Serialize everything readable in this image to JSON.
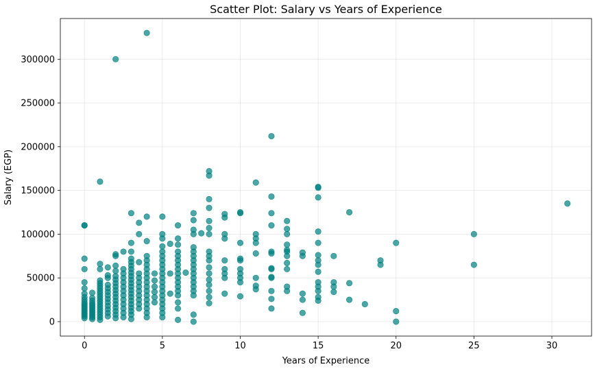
{
  "chart_data": {
    "type": "scatter",
    "title": "Scatter Plot: Salary vs Years of Experience",
    "xlabel": "Years of Experience",
    "ylabel": "Salary (EGP)",
    "xlim": [
      -1.55,
      32.55
    ],
    "ylim": [
      -16500,
      346500
    ],
    "xticks": [
      0,
      5,
      10,
      15,
      20,
      25,
      30
    ],
    "yticks": [
      0,
      50000,
      100000,
      150000,
      200000,
      250000,
      300000
    ],
    "xtick_labels": [
      "0",
      "5",
      "10",
      "15",
      "20",
      "25",
      "30"
    ],
    "ytick_labels": [
      "0",
      "50000",
      "100000",
      "150000",
      "200000",
      "250000",
      "300000"
    ],
    "grid": true,
    "marker_color": "#008080",
    "marker_alpha": 0.7,
    "series": [
      {
        "points": [
          [
            0,
            110000
          ],
          [
            0,
            110000
          ],
          [
            0,
            72000
          ],
          [
            0,
            60000
          ],
          [
            0,
            45000
          ],
          [
            0,
            38000
          ],
          [
            0,
            32000
          ],
          [
            0,
            28000
          ],
          [
            0,
            25000
          ],
          [
            0,
            22000
          ],
          [
            0,
            20000
          ],
          [
            0,
            18000
          ],
          [
            0,
            16000
          ],
          [
            0,
            14000
          ],
          [
            0,
            12000
          ],
          [
            0,
            10000
          ],
          [
            0,
            8000
          ],
          [
            0,
            6000
          ],
          [
            0,
            4000
          ],
          [
            0.5,
            33000
          ],
          [
            0.5,
            27000
          ],
          [
            0.5,
            24000
          ],
          [
            0.5,
            21000
          ],
          [
            0.5,
            19000
          ],
          [
            0.5,
            17000
          ],
          [
            0.5,
            15000
          ],
          [
            0.5,
            13000
          ],
          [
            0.5,
            11000
          ],
          [
            0.5,
            9000
          ],
          [
            0.5,
            7000
          ],
          [
            0.5,
            5000
          ],
          [
            0.5,
            3000
          ],
          [
            1,
            160000
          ],
          [
            1,
            66000
          ],
          [
            1,
            60000
          ],
          [
            1,
            47000
          ],
          [
            1,
            44000
          ],
          [
            1,
            41000
          ],
          [
            1,
            38000
          ],
          [
            1,
            35000
          ],
          [
            1,
            32000
          ],
          [
            1,
            29000
          ],
          [
            1,
            26000
          ],
          [
            1,
            23000
          ],
          [
            1,
            20000
          ],
          [
            1,
            17000
          ],
          [
            1,
            14000
          ],
          [
            1,
            11000
          ],
          [
            1,
            8000
          ],
          [
            1,
            5000
          ],
          [
            1,
            2000
          ],
          [
            1.5,
            62000
          ],
          [
            1.5,
            53000
          ],
          [
            1.5,
            50000
          ],
          [
            1.5,
            42000
          ],
          [
            1.5,
            38000
          ],
          [
            1.5,
            34000
          ],
          [
            1.5,
            30000
          ],
          [
            1.5,
            26000
          ],
          [
            1.5,
            22000
          ],
          [
            1.5,
            18000
          ],
          [
            1.5,
            14000
          ],
          [
            1.5,
            10000
          ],
          [
            1.5,
            6000
          ],
          [
            2,
            300000
          ],
          [
            2,
            77000
          ],
          [
            2,
            75000
          ],
          [
            2,
            64000
          ],
          [
            2,
            58000
          ],
          [
            2,
            52000
          ],
          [
            2,
            48000
          ],
          [
            2,
            44000
          ],
          [
            2,
            40000
          ],
          [
            2,
            36000
          ],
          [
            2,
            32000
          ],
          [
            2,
            28000
          ],
          [
            2,
            24000
          ],
          [
            2,
            20000
          ],
          [
            2,
            16000
          ],
          [
            2,
            12000
          ],
          [
            2,
            8000
          ],
          [
            2,
            4000
          ],
          [
            2.5,
            80000
          ],
          [
            2.5,
            60000
          ],
          [
            2.5,
            55000
          ],
          [
            2.5,
            50000
          ],
          [
            2.5,
            45000
          ],
          [
            2.5,
            40000
          ],
          [
            2.5,
            35000
          ],
          [
            2.5,
            30000
          ],
          [
            2.5,
            25000
          ],
          [
            2.5,
            20000
          ],
          [
            2.5,
            15000
          ],
          [
            2.5,
            10000
          ],
          [
            2.5,
            5000
          ],
          [
            3,
            124000
          ],
          [
            3,
            90000
          ],
          [
            3,
            80000
          ],
          [
            3,
            72000
          ],
          [
            3,
            68000
          ],
          [
            3,
            64000
          ],
          [
            3,
            60000
          ],
          [
            3,
            56000
          ],
          [
            3,
            52000
          ],
          [
            3,
            48000
          ],
          [
            3,
            44000
          ],
          [
            3,
            40000
          ],
          [
            3,
            36000
          ],
          [
            3,
            32000
          ],
          [
            3,
            28000
          ],
          [
            3,
            24000
          ],
          [
            3,
            20000
          ],
          [
            3,
            16000
          ],
          [
            3,
            12000
          ],
          [
            3,
            8000
          ],
          [
            3,
            3000
          ],
          [
            3.5,
            113000
          ],
          [
            3.5,
            100000
          ],
          [
            3.5,
            68000
          ],
          [
            3.5,
            55000
          ],
          [
            3.5,
            50000
          ],
          [
            3.5,
            45000
          ],
          [
            3.5,
            40000
          ],
          [
            3.5,
            35000
          ],
          [
            3.5,
            30000
          ],
          [
            3.5,
            25000
          ],
          [
            3.5,
            20000
          ],
          [
            3.5,
            15000
          ],
          [
            4,
            330000
          ],
          [
            4,
            120000
          ],
          [
            4,
            92000
          ],
          [
            4,
            75000
          ],
          [
            4,
            70000
          ],
          [
            4,
            65000
          ],
          [
            4,
            60000
          ],
          [
            4,
            55000
          ],
          [
            4,
            50000
          ],
          [
            4,
            45000
          ],
          [
            4,
            40000
          ],
          [
            4,
            35000
          ],
          [
            4,
            30000
          ],
          [
            4,
            25000
          ],
          [
            4,
            20000
          ],
          [
            4,
            15000
          ],
          [
            4,
            10000
          ],
          [
            4,
            5000
          ],
          [
            4.5,
            55000
          ],
          [
            4.5,
            47000
          ],
          [
            4.5,
            40000
          ],
          [
            4.5,
            34000
          ],
          [
            4.5,
            28000
          ],
          [
            4.5,
            22000
          ],
          [
            5,
            120000
          ],
          [
            5,
            100000
          ],
          [
            5,
            95000
          ],
          [
            5,
            86000
          ],
          [
            5,
            80000
          ],
          [
            5,
            75000
          ],
          [
            5,
            70000
          ],
          [
            5,
            65000
          ],
          [
            5,
            60000
          ],
          [
            5,
            55000
          ],
          [
            5,
            50000
          ],
          [
            5,
            45000
          ],
          [
            5,
            40000
          ],
          [
            5,
            35000
          ],
          [
            5,
            30000
          ],
          [
            5,
            25000
          ],
          [
            5,
            20000
          ],
          [
            5,
            15000
          ],
          [
            5,
            10000
          ],
          [
            5,
            5000
          ],
          [
            5.5,
            89000
          ],
          [
            5.5,
            55000
          ],
          [
            5.5,
            32000
          ],
          [
            6,
            110000
          ],
          [
            6,
            95000
          ],
          [
            6,
            88000
          ],
          [
            6,
            80000
          ],
          [
            6,
            75000
          ],
          [
            6,
            70000
          ],
          [
            6,
            65000
          ],
          [
            6,
            60000
          ],
          [
            6,
            55000
          ],
          [
            6,
            50000
          ],
          [
            6,
            45000
          ],
          [
            6,
            40000
          ],
          [
            6,
            35000
          ],
          [
            6,
            30000
          ],
          [
            6,
            22000
          ],
          [
            6,
            15000
          ],
          [
            6,
            2000
          ],
          [
            6.5,
            56000
          ],
          [
            7,
            124000
          ],
          [
            7,
            116000
          ],
          [
            7,
            105000
          ],
          [
            7,
            100000
          ],
          [
            7,
            85000
          ],
          [
            7,
            80000
          ],
          [
            7,
            75000
          ],
          [
            7,
            70000
          ],
          [
            7,
            65000
          ],
          [
            7,
            60000
          ],
          [
            7,
            55000
          ],
          [
            7,
            50000
          ],
          [
            7,
            45000
          ],
          [
            7,
            40000
          ],
          [
            7,
            35000
          ],
          [
            7,
            30000
          ],
          [
            7,
            8000
          ],
          [
            7,
            0
          ],
          [
            7.5,
            101000
          ],
          [
            8,
            172000
          ],
          [
            8,
            167000
          ],
          [
            8,
            140000
          ],
          [
            8,
            130000
          ],
          [
            8,
            115000
          ],
          [
            8,
            107000
          ],
          [
            8,
            100000
          ],
          [
            8,
            80000
          ],
          [
            8,
            75000
          ],
          [
            8,
            70000
          ],
          [
            8,
            62000
          ],
          [
            8,
            55000
          ],
          [
            8,
            48000
          ],
          [
            8,
            42000
          ],
          [
            8,
            35000
          ],
          [
            8,
            28000
          ],
          [
            8,
            21000
          ],
          [
            9,
            123000
          ],
          [
            9,
            119000
          ],
          [
            9,
            100000
          ],
          [
            9,
            95000
          ],
          [
            9,
            70000
          ],
          [
            9,
            60000
          ],
          [
            9,
            55000
          ],
          [
            9,
            50000
          ],
          [
            9,
            32000
          ],
          [
            10,
            125000
          ],
          [
            10,
            124000
          ],
          [
            10,
            90000
          ],
          [
            10,
            72000
          ],
          [
            10,
            70000
          ],
          [
            10,
            60000
          ],
          [
            10,
            55000
          ],
          [
            10,
            50000
          ],
          [
            10,
            45000
          ],
          [
            10,
            29000
          ],
          [
            11,
            159000
          ],
          [
            11,
            100000
          ],
          [
            11,
            95000
          ],
          [
            11,
            90000
          ],
          [
            11,
            78000
          ],
          [
            11,
            50000
          ],
          [
            11,
            41000
          ],
          [
            11,
            37000
          ],
          [
            12,
            212000
          ],
          [
            12,
            143000
          ],
          [
            12,
            124000
          ],
          [
            12,
            110000
          ],
          [
            12,
            80000
          ],
          [
            12,
            78000
          ],
          [
            12,
            61000
          ],
          [
            12,
            60000
          ],
          [
            12,
            51000
          ],
          [
            12,
            50000
          ],
          [
            12,
            35000
          ],
          [
            12,
            26000
          ],
          [
            12,
            15000
          ],
          [
            13,
            115000
          ],
          [
            13,
            106000
          ],
          [
            13,
            100000
          ],
          [
            13,
            88000
          ],
          [
            13,
            82000
          ],
          [
            13,
            80000
          ],
          [
            13,
            75000
          ],
          [
            13,
            67000
          ],
          [
            13,
            60000
          ],
          [
            13,
            40000
          ],
          [
            13,
            35000
          ],
          [
            14,
            79000
          ],
          [
            14,
            75000
          ],
          [
            14,
            32000
          ],
          [
            14,
            25000
          ],
          [
            14,
            10000
          ],
          [
            15,
            154000
          ],
          [
            15,
            153000
          ],
          [
            15,
            142000
          ],
          [
            15,
            103000
          ],
          [
            15,
            90000
          ],
          [
            15,
            76000
          ],
          [
            15,
            70000
          ],
          [
            15,
            65000
          ],
          [
            15,
            57000
          ],
          [
            15,
            45000
          ],
          [
            15,
            40000
          ],
          [
            15,
            35000
          ],
          [
            15,
            28000
          ],
          [
            15,
            24000
          ],
          [
            16,
            75000
          ],
          [
            16,
            45000
          ],
          [
            16,
            40000
          ],
          [
            16,
            34000
          ],
          [
            17,
            125000
          ],
          [
            17,
            44000
          ],
          [
            17,
            25000
          ],
          [
            18,
            20000
          ],
          [
            19,
            70000
          ],
          [
            19,
            65000
          ],
          [
            20,
            90000
          ],
          [
            20,
            12000
          ],
          [
            20,
            0
          ],
          [
            25,
            100000
          ],
          [
            25,
            65000
          ],
          [
            31,
            135000
          ]
        ]
      }
    ]
  }
}
